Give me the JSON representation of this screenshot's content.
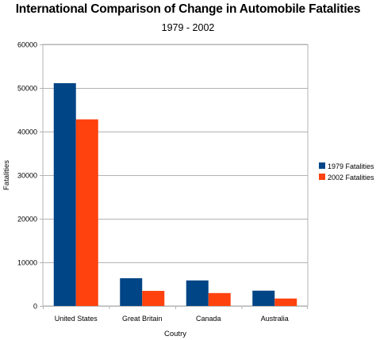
{
  "chart_data": {
    "type": "bar",
    "title": "International Comparison of Change in Automobile Fatalities",
    "subtitle": "1979 - 2002",
    "xlabel": "Coutry",
    "ylabel": "Fatalities",
    "categories": [
      "United States",
      "Great Britain",
      "Canada",
      "Australia"
    ],
    "series": [
      {
        "name": "1979 Fatalities",
        "color": "#004586",
        "values": [
          51100,
          6350,
          5850,
          3500
        ]
      },
      {
        "name": "2002 Fatalities",
        "color": "#ff420e",
        "values": [
          42800,
          3450,
          2950,
          1700
        ]
      }
    ],
    "ylim": [
      0,
      60000
    ],
    "yticks": [
      0,
      10000,
      20000,
      30000,
      40000,
      50000,
      60000
    ],
    "grid": true,
    "legend_position": "right",
    "plot_background": "#ffffff",
    "grid_color": "#b3b3b3"
  }
}
